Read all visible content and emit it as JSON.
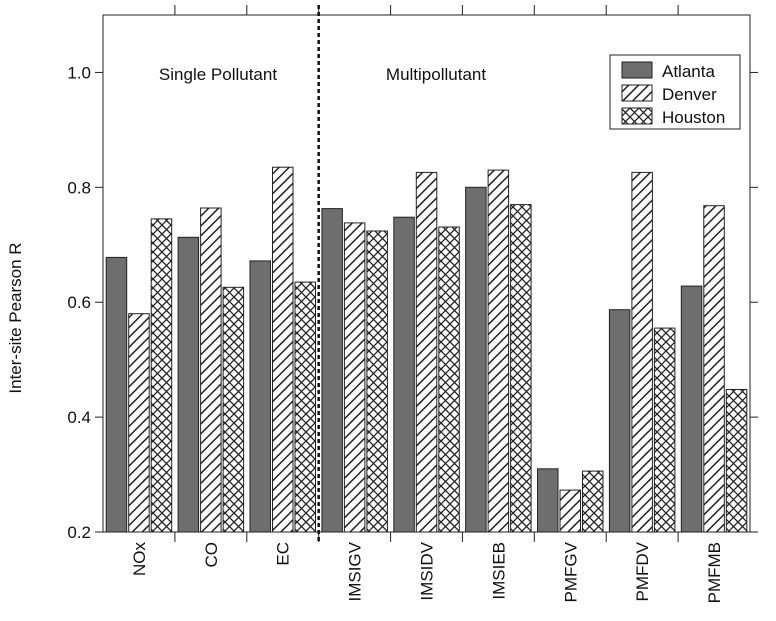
{
  "chart_data": {
    "type": "bar",
    "title": "",
    "xlabel": "",
    "ylabel": "Inter-site Pearson R",
    "ylim": [
      0.2,
      1.1
    ],
    "yticks": [
      "0.2",
      "0.4",
      "0.6",
      "0.8",
      "1.0"
    ],
    "grid": false,
    "legend_position": "top-right",
    "categories": [
      "NOx",
      "CO",
      "EC",
      "IMSIGV",
      "IMSIDV",
      "IMSIEB",
      "PMFGV",
      "PMFDV",
      "PMFMB"
    ],
    "series": [
      {
        "name": "Atlanta",
        "pattern": "solid-gray",
        "color": "#6e6e6e",
        "values": [
          0.678,
          0.713,
          0.672,
          0.763,
          0.748,
          0.8,
          0.31,
          0.587,
          0.628
        ]
      },
      {
        "name": "Denver",
        "pattern": "diagonal-hatch",
        "color": "#222222",
        "values": [
          0.58,
          0.764,
          0.835,
          0.738,
          0.826,
          0.83,
          0.273,
          0.826,
          0.768
        ]
      },
      {
        "name": "Houston",
        "pattern": "crosshatch",
        "color": "#222222",
        "values": [
          0.745,
          0.626,
          0.635,
          0.724,
          0.731,
          0.77,
          0.306,
          0.555,
          0.448
        ]
      }
    ],
    "annotations": {
      "left_region": "Single Pollutant",
      "right_region": "Multipollutant",
      "divider_after_category_index": 2
    }
  }
}
